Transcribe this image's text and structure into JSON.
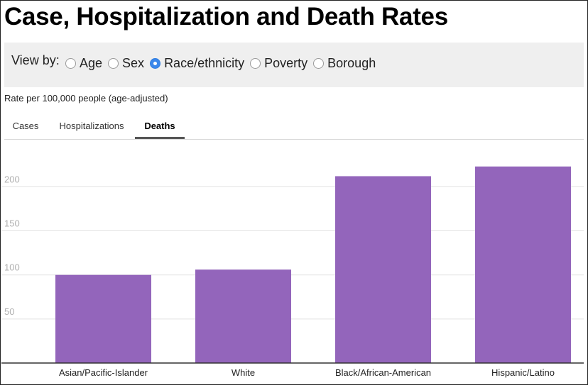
{
  "page": {
    "title": "Case, Hospitalization and Death Rates",
    "subtitle": "Rate per 100,000 people (age-adjusted)"
  },
  "view_by": {
    "label": "View by:",
    "options": [
      {
        "label": "Age",
        "checked": false
      },
      {
        "label": "Sex",
        "checked": false
      },
      {
        "label": "Race/ethnicity",
        "checked": true
      },
      {
        "label": "Poverty",
        "checked": false
      },
      {
        "label": "Borough",
        "checked": false
      }
    ]
  },
  "tabs": [
    {
      "label": "Cases",
      "active": false
    },
    {
      "label": "Hospitalizations",
      "active": false
    },
    {
      "label": "Deaths",
      "active": true
    }
  ],
  "colors": {
    "bar": "#9365bb",
    "grid": "#e3e3e3",
    "axis": "#333333",
    "tick_text": "#b0b0b0"
  },
  "chart_data": {
    "type": "bar",
    "title": "",
    "xlabel": "",
    "ylabel": "",
    "categories": [
      "Asian/Pacific-Islander",
      "White",
      "Black/African-American",
      "Hispanic/Latino"
    ],
    "values": [
      100,
      106,
      212,
      223
    ],
    "ylim": [
      0,
      250
    ],
    "yticks": [
      50,
      100,
      150,
      200
    ],
    "grid": true
  }
}
